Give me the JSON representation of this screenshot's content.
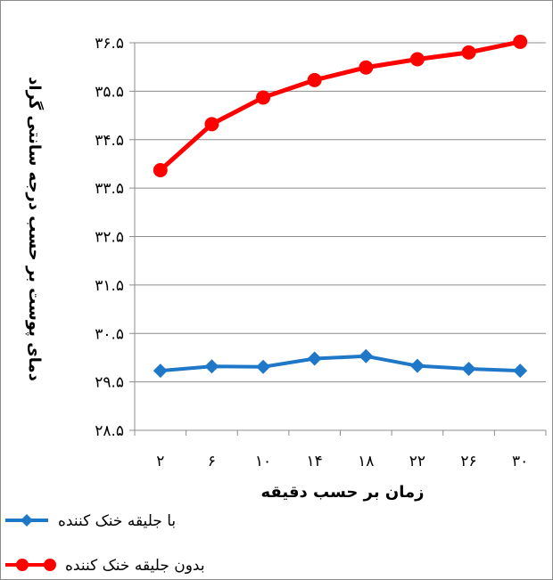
{
  "chart_data": {
    "type": "line",
    "categories": [
      "۲",
      "۶",
      "۱۰",
      "۱۴",
      "۱۸",
      "۲۲",
      "۲۶",
      "۳۰"
    ],
    "y_tick_labels": [
      "۲۸.۵",
      "۲۹.۵",
      "۳۰.۵",
      "۳۱.۵",
      "۳۲.۵",
      "۳۳.۵",
      "۳۴.۵",
      "۳۵.۵",
      "۳۶.۵"
    ],
    "ylim": [
      28.5,
      36.5
    ],
    "xlabel": "زمان بر حسب دقیقه",
    "ylabel": "دمای پوست بر حسب درجه سانتی گراد",
    "grid": true,
    "legend_position": "bottom-left",
    "series": [
      {
        "name": "با جلیقه خنک کننده",
        "color": "#1f77c8",
        "marker": "diamond",
        "values": [
          29.73,
          29.82,
          29.81,
          29.98,
          30.03,
          29.83,
          29.77,
          29.73
        ]
      },
      {
        "name": "بدون جلیقه خنک کننده",
        "color": "#ff0000",
        "marker": "circle",
        "values": [
          33.87,
          34.82,
          35.37,
          35.73,
          35.99,
          36.16,
          36.3,
          36.52
        ]
      }
    ]
  }
}
